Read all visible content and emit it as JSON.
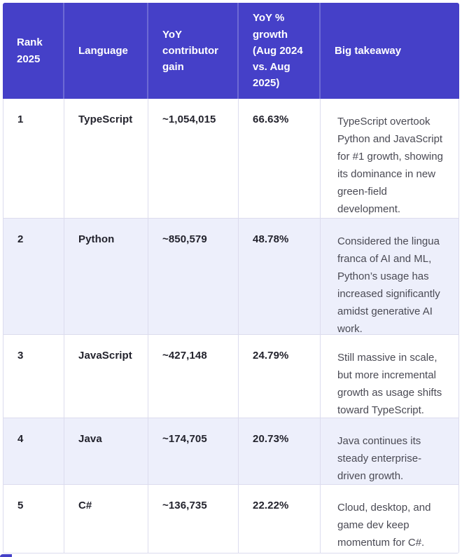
{
  "colors": {
    "header_bg": "#4540c8",
    "row_alt_bg": "#edeffb",
    "row_bg": "#ffffff",
    "border": "#dcdcee",
    "header_text": "#ffffff",
    "data_text": "#23232d",
    "takeaway_text": "#4a4a54"
  },
  "table": {
    "columns": [
      {
        "label": "Rank 2025"
      },
      {
        "label": "Language"
      },
      {
        "label": "YoY contributor gain"
      },
      {
        "label": "YoY % growth (Aug 2024 vs. Aug 2025)"
      },
      {
        "label": "Big takeaway"
      }
    ],
    "rows": [
      {
        "rank": "1",
        "language": "TypeScript",
        "gain": "~1,054,015",
        "growth": "66.63%",
        "takeaway": "TypeScript overtook Python and JavaScript for #1 growth, showing its dominance in new green-field development."
      },
      {
        "rank": "2",
        "language": "Python",
        "gain": "~850,579",
        "growth": "48.78%",
        "takeaway": "Considered the lingua franca of AI and ML, Python’s usage has increased significantly amidst generative AI work."
      },
      {
        "rank": "3",
        "language": "JavaScript",
        "gain": "~427,148",
        "growth": "24.79%",
        "takeaway": "Still massive in scale, but more incremental growth as usage shifts toward TypeScript."
      },
      {
        "rank": "4",
        "language": "Java",
        "gain": "~174,705",
        "growth": "20.73%",
        "takeaway": "Java continues its steady enterprise-driven growth."
      },
      {
        "rank": "5",
        "language": "C#",
        "gain": "~136,735",
        "growth": "22.22%",
        "takeaway": "Cloud, desktop, and game dev keep momentum for C#."
      }
    ]
  }
}
